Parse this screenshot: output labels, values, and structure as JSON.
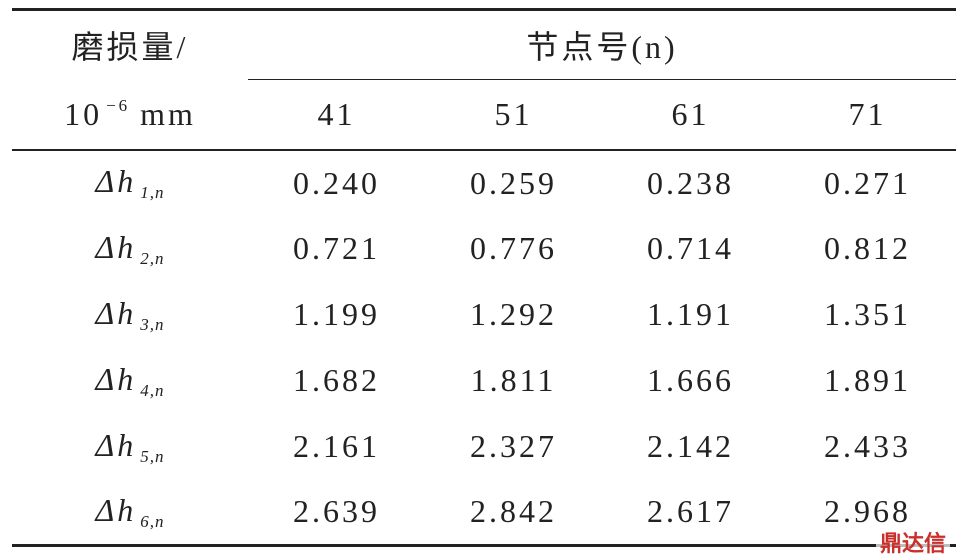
{
  "table": {
    "header": {
      "corner_top": "磨损量/",
      "corner_bottom": {
        "base": "10",
        "exp": "−6",
        "unit": "mm"
      },
      "group": "节点号(n)",
      "columns": [
        "41",
        "51",
        "61",
        "71"
      ]
    },
    "rows": [
      {
        "label": {
          "main": "Δh",
          "sub": "1,n"
        },
        "values": [
          "0.240",
          "0.259",
          "0.238",
          "0.271"
        ]
      },
      {
        "label": {
          "main": "Δh",
          "sub": "2,n"
        },
        "values": [
          "0.721",
          "0.776",
          "0.714",
          "0.812"
        ]
      },
      {
        "label": {
          "main": "Δh",
          "sub": "3,n"
        },
        "values": [
          "1.199",
          "1.292",
          "1.191",
          "1.351"
        ]
      },
      {
        "label": {
          "main": "Δh",
          "sub": "4,n"
        },
        "values": [
          "1.682",
          "1.811",
          "1.666",
          "1.891"
        ]
      },
      {
        "label": {
          "main": "Δh",
          "sub": "5,n"
        },
        "values": [
          "2.161",
          "2.327",
          "2.142",
          "2.433"
        ]
      },
      {
        "label": {
          "main": "Δh",
          "sub": "6,n"
        },
        "values": [
          "2.639",
          "2.842",
          "2.617",
          "2.968"
        ]
      }
    ]
  },
  "watermark": {
    "text": "鼎达信"
  }
}
